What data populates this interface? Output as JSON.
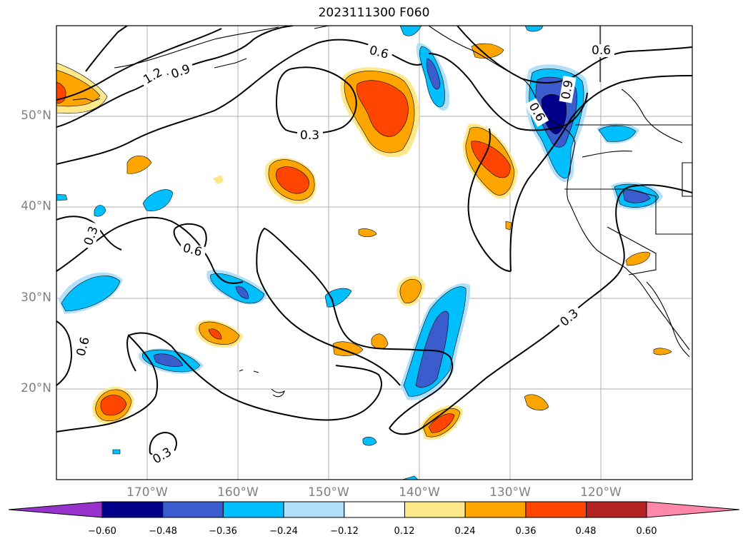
{
  "title": "2023111300 F060",
  "lat_labels": [
    "50°N",
    "40°N",
    "30°N",
    "20°N"
  ],
  "lon_labels": [
    "170°W",
    "160°W",
    "150°W",
    "140°W",
    "130°W",
    "120°W"
  ],
  "contour_labels": [
    "1.2",
    "0.9",
    "0.6",
    "0.6",
    "0.3",
    "0.6",
    "0.3",
    "0.9",
    "0.6",
    "0.3",
    "0.6",
    "0.3"
  ],
  "colorbar": {
    "ticks": [
      "−0.60",
      "−0.48",
      "−0.36",
      "−0.24",
      "−0.12",
      "0.12",
      "0.24",
      "0.36",
      "0.48",
      "0.60"
    ],
    "colors": [
      "#9932cc",
      "#00008b",
      "#3a5ccc",
      "#00bfff",
      "#b0e0fa",
      "#ffffff",
      "#ffe88a",
      "#ffa500",
      "#ff4500",
      "#b22222",
      "#ff88aa"
    ]
  },
  "field_colors": {
    "pos_light": "#ffe88a",
    "pos_mid": "#ffa500",
    "pos_strong": "#ff4500",
    "neg_light": "#b0e0fa",
    "neg_mid": "#00bfff",
    "neg_strong": "#3a5ccc",
    "neg_max": "#00008b"
  }
}
